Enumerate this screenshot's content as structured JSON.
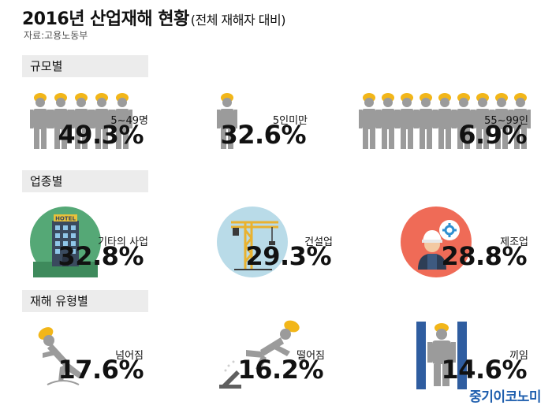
{
  "header": {
    "title": "2016년 산업재해 현황",
    "subtitle": "(전체 재해자 대비)",
    "source": "자료:고용노동부"
  },
  "sections": {
    "size": "규모별",
    "industry": "업종별",
    "type": "재해 유형별"
  },
  "chart_data": {
    "type": "table",
    "groups": [
      {
        "name": "규모별",
        "items": [
          {
            "label": "5~49명",
            "value": "49.3%"
          },
          {
            "label": "5인미만",
            "value": "32.6%"
          },
          {
            "label": "55~99인",
            "value": "6.9%"
          }
        ]
      },
      {
        "name": "업종별",
        "items": [
          {
            "label": "기타의 사업",
            "value": "32.8%"
          },
          {
            "label": "건설업",
            "value": "29.3%"
          },
          {
            "label": "제조업",
            "value": "28.8%"
          }
        ]
      },
      {
        "name": "재해 유형별",
        "items": [
          {
            "label": "넘어짐",
            "value": "17.6%"
          },
          {
            "label": "떨어짐",
            "value": "16.2%"
          },
          {
            "label": "끼임",
            "value": "14.6%"
          }
        ]
      }
    ]
  },
  "icons": {
    "hotel_sign": "HOTEL"
  },
  "colors": {
    "worker": "#9b9b9b",
    "helmet": "#f2b619",
    "hotel_circle": "#55a876",
    "crane_circle": "#b9dbe8",
    "factory_circle": "#ef6b57",
    "caught_bars": "#2f5da0",
    "brand": "#1f5fae"
  },
  "brand": "중기이코노미"
}
